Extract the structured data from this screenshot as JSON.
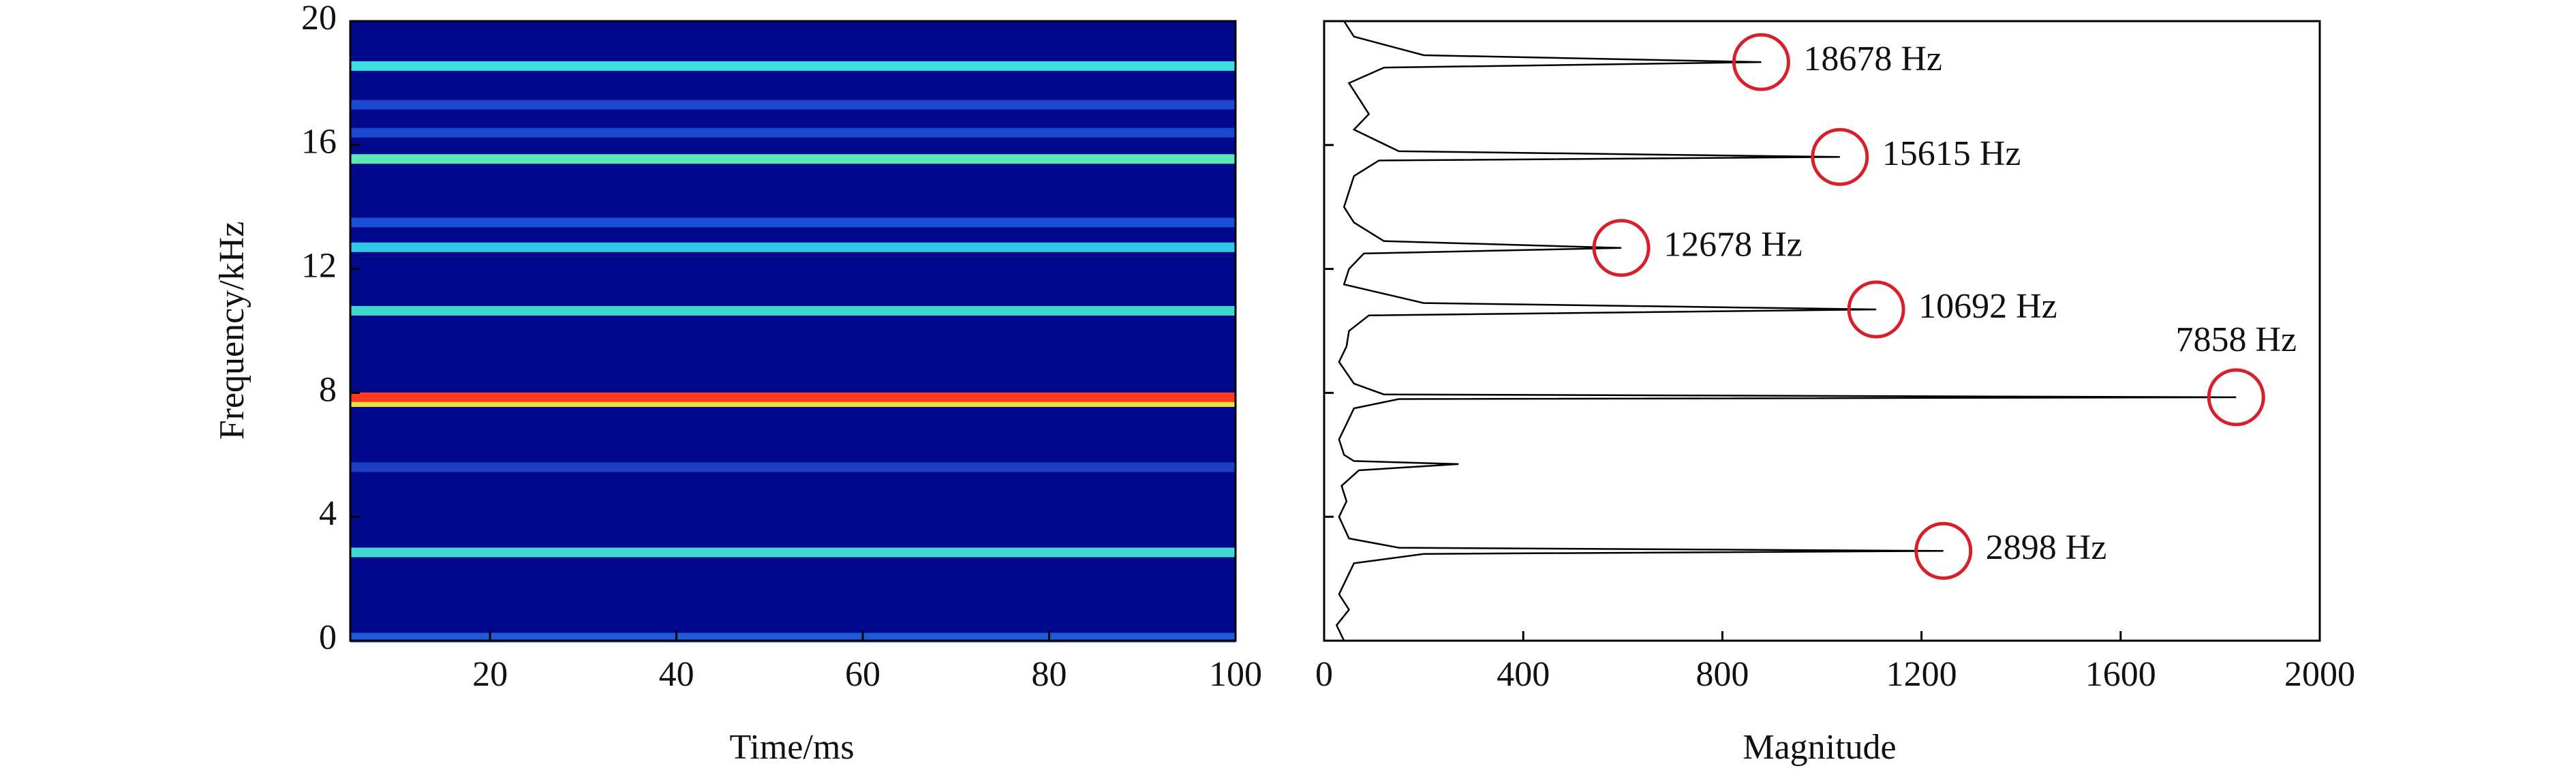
{
  "chart_data": [
    {
      "type": "spectrogram",
      "x_label": "Time/ms",
      "y_label": "Frequency/kHz",
      "xlim": [
        5,
        100
      ],
      "xticks": [
        20,
        40,
        60,
        80,
        100
      ],
      "ylim": [
        0,
        20
      ],
      "yticks": [
        0,
        4,
        8,
        12,
        16,
        20
      ],
      "background": "#00098c",
      "bands": [
        {
          "y": 0.1,
          "color": "#1f5ad8"
        },
        {
          "y": 2.85,
          "color": "#3fd8d2"
        },
        {
          "y": 5.6,
          "color": "#1a3fc4"
        },
        {
          "y": 7.7,
          "color": "#e8e040"
        },
        {
          "y": 7.86,
          "color": "#ff3a1e"
        },
        {
          "y": 10.65,
          "color": "#3fd8c8"
        },
        {
          "y": 12.7,
          "color": "#2fc8e8"
        },
        {
          "y": 13.5,
          "color": "#1a50d8"
        },
        {
          "y": 15.55,
          "color": "#5de8b8"
        },
        {
          "y": 16.4,
          "color": "#1a48d0"
        },
        {
          "y": 17.3,
          "color": "#1a48d0"
        },
        {
          "y": 18.55,
          "color": "#3ae0e0"
        }
      ]
    },
    {
      "type": "spectrum",
      "x_label": "Magnitude",
      "xlim": [
        0,
        2000
      ],
      "xticks": [
        0,
        400,
        800,
        1200,
        1600,
        2000
      ],
      "ylim": [
        0,
        20
      ],
      "yticks": [
        0,
        4,
        8,
        12,
        16,
        20
      ],
      "color": "#000000",
      "marker_color": "#d8202c",
      "frequency": [
        0,
        0.5,
        1,
        1.5,
        2,
        2.5,
        2.8,
        2.898,
        3.0,
        3.3,
        4,
        4.5,
        5,
        5.5,
        5.7,
        5.8,
        6,
        6.5,
        7,
        7.5,
        7.8,
        7.858,
        7.95,
        8.3,
        9,
        9.5,
        10,
        10.5,
        10.692,
        10.9,
        11.5,
        12,
        12.5,
        12.678,
        12.9,
        13.5,
        14,
        14.5,
        15,
        15.5,
        15.615,
        15.8,
        16.5,
        17,
        17.5,
        18,
        18.5,
        18.678,
        18.9,
        19.5,
        20
      ],
      "magnitude": [
        40,
        25,
        50,
        30,
        45,
        60,
        200,
        1244,
        150,
        50,
        30,
        45,
        35,
        70,
        270,
        60,
        40,
        30,
        45,
        60,
        150,
        1832,
        120,
        60,
        30,
        45,
        50,
        90,
        1109,
        200,
        40,
        50,
        80,
        597,
        120,
        60,
        40,
        50,
        60,
        110,
        1036,
        150,
        60,
        90,
        70,
        50,
        120,
        878,
        200,
        60,
        40
      ],
      "peaks": [
        {
          "label": "18678 Hz",
          "frequency": 18.678,
          "magnitude": 878
        },
        {
          "label": "15615 Hz",
          "frequency": 15.615,
          "magnitude": 1036
        },
        {
          "label": "12678 Hz",
          "frequency": 12.678,
          "magnitude": 597
        },
        {
          "label": "10692 Hz",
          "frequency": 10.692,
          "magnitude": 1109
        },
        {
          "label": "7858 Hz",
          "frequency": 7.858,
          "magnitude": 1832
        },
        {
          "label": "2898 Hz",
          "frequency": 2.898,
          "magnitude": 1244
        }
      ]
    }
  ]
}
